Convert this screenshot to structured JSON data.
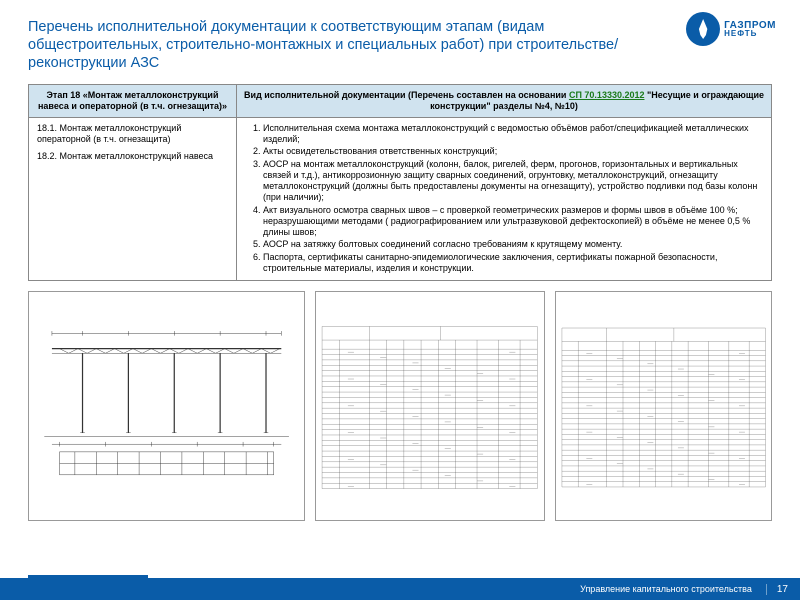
{
  "brand": {
    "line1": "ГАЗПРОМ",
    "line2": "НЕФТЬ",
    "color": "#0a5ca8"
  },
  "title": "Перечень исполнительной документации к соответствующим этапам (видам общестроительных, строительно-монтажных и специальных работ) при строительстве/реконструкции АЗС",
  "table": {
    "head_left": "Этап 18 «Монтаж металлоконструкций навеса и операторной (в т.ч. огнезащита)»",
    "head_right_pre": "Вид исполнительной документации\n(Перечень составлен на основании ",
    "head_right_link": "СП 70.13330.2012",
    "head_right_post": " \"Несущие и ограждающие конструкции\" разделы №4, №10)",
    "left_item1": "18.1. Монтаж металлоконструкций операторной (в т.ч. огнезащита)",
    "left_item2": "18.2. Монтаж металлоконструкций навеса",
    "list": [
      "Исполнительная схема монтажа металлоконструкций с ведомостью объёмов работ/спецификацией металлических изделий;",
      "Акты освидетельствования ответственных конструкций;",
      "АОСР на монтаж металлоконструкций (колонн, балок, ригелей, ферм, прогонов, горизонтальных и вертикальных связей и т.д.), антикоррозионную защиту сварных соединений, огрунтовку, металлоконструкций, огнезащиту металлоконструкций (должны быть предоставлены документы на огнезащиту), устройство подливки под базы колонн (при наличии);",
      "Акт визуального осмотра сварных швов – с проверкой геометрических размеров и формы швов в объёме 100 %; неразрушающими методами ( радиографированием или ультразвуковой дефектоскопией) в объёме не менее 0,5 % длины швов;",
      "АОСР на затяжку болтовых соединений согласно требованиям к крутящему моменту.",
      "Паспорта, сертификаты санитарно-эпидемиологические заключения, сертификаты пожарной безопасности,  строительные материалы, изделия и конструкции."
    ]
  },
  "footer": {
    "dept": "Управление капитального строительства",
    "page": "17"
  },
  "drawing": {
    "stroke": "#333333",
    "thin": 0.6,
    "thick": 1.6,
    "bg": "#ffffff"
  },
  "spec_table": {
    "stroke": "#555555",
    "thin": 0.4,
    "cols": 11,
    "rows": 26
  }
}
